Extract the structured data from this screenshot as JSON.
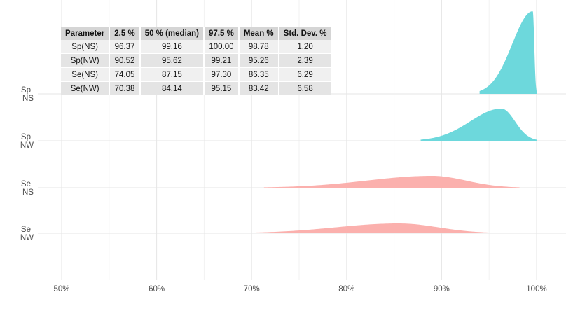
{
  "chart_data": {
    "type": "ridgeline",
    "x_unit": "%",
    "xlim": [
      47,
      102
    ],
    "x_ticks": [
      "50%",
      "60%",
      "70%",
      "80%",
      "90%",
      "100%"
    ],
    "grid": true,
    "series": [
      {
        "name": "Sp\nNS",
        "label_lines": [
          "Sp",
          "NS"
        ],
        "color": "#6dd8dc",
        "x_range": [
          94.0,
          100.0
        ],
        "mean": 98.78,
        "sd": 1.2,
        "peak_x": 99.6
      },
      {
        "name": "Sp\nNW",
        "label_lines": [
          "Sp",
          "NW"
        ],
        "color": "#6dd8dc",
        "x_range": [
          87.8,
          100.0
        ],
        "mean": 95.26,
        "sd": 2.39,
        "peak_x": 96.3
      },
      {
        "name": "Se\nNS",
        "label_lines": [
          "Se",
          "NS"
        ],
        "color": "#fbb0ad",
        "x_range": [
          71.3,
          98.2
        ],
        "mean": 86.35,
        "sd": 6.29,
        "peak_x": 89.0
      },
      {
        "name": "Se\nNW",
        "label_lines": [
          "Se",
          "NW"
        ],
        "color": "#fbb0ad",
        "x_range": [
          68.3,
          96.2
        ],
        "mean": 83.42,
        "sd": 6.58,
        "peak_x": 85.5
      }
    ]
  },
  "table": {
    "headers": [
      "Parameter",
      "2.5 %",
      "50 % (median)",
      "97.5 %",
      "Mean %",
      "Std. Dev. %"
    ],
    "rows": [
      [
        "Sp(NS)",
        "96.37",
        "99.16",
        "100.00",
        "98.78",
        "1.20"
      ],
      [
        "Sp(NW)",
        "90.52",
        "95.62",
        "99.21",
        "95.26",
        "2.39"
      ],
      [
        "Se(NS)",
        "74.05",
        "87.15",
        "97.30",
        "86.35",
        "6.29"
      ],
      [
        "Se(NW)",
        "70.38",
        "84.14",
        "95.15",
        "83.42",
        "6.58"
      ]
    ]
  }
}
